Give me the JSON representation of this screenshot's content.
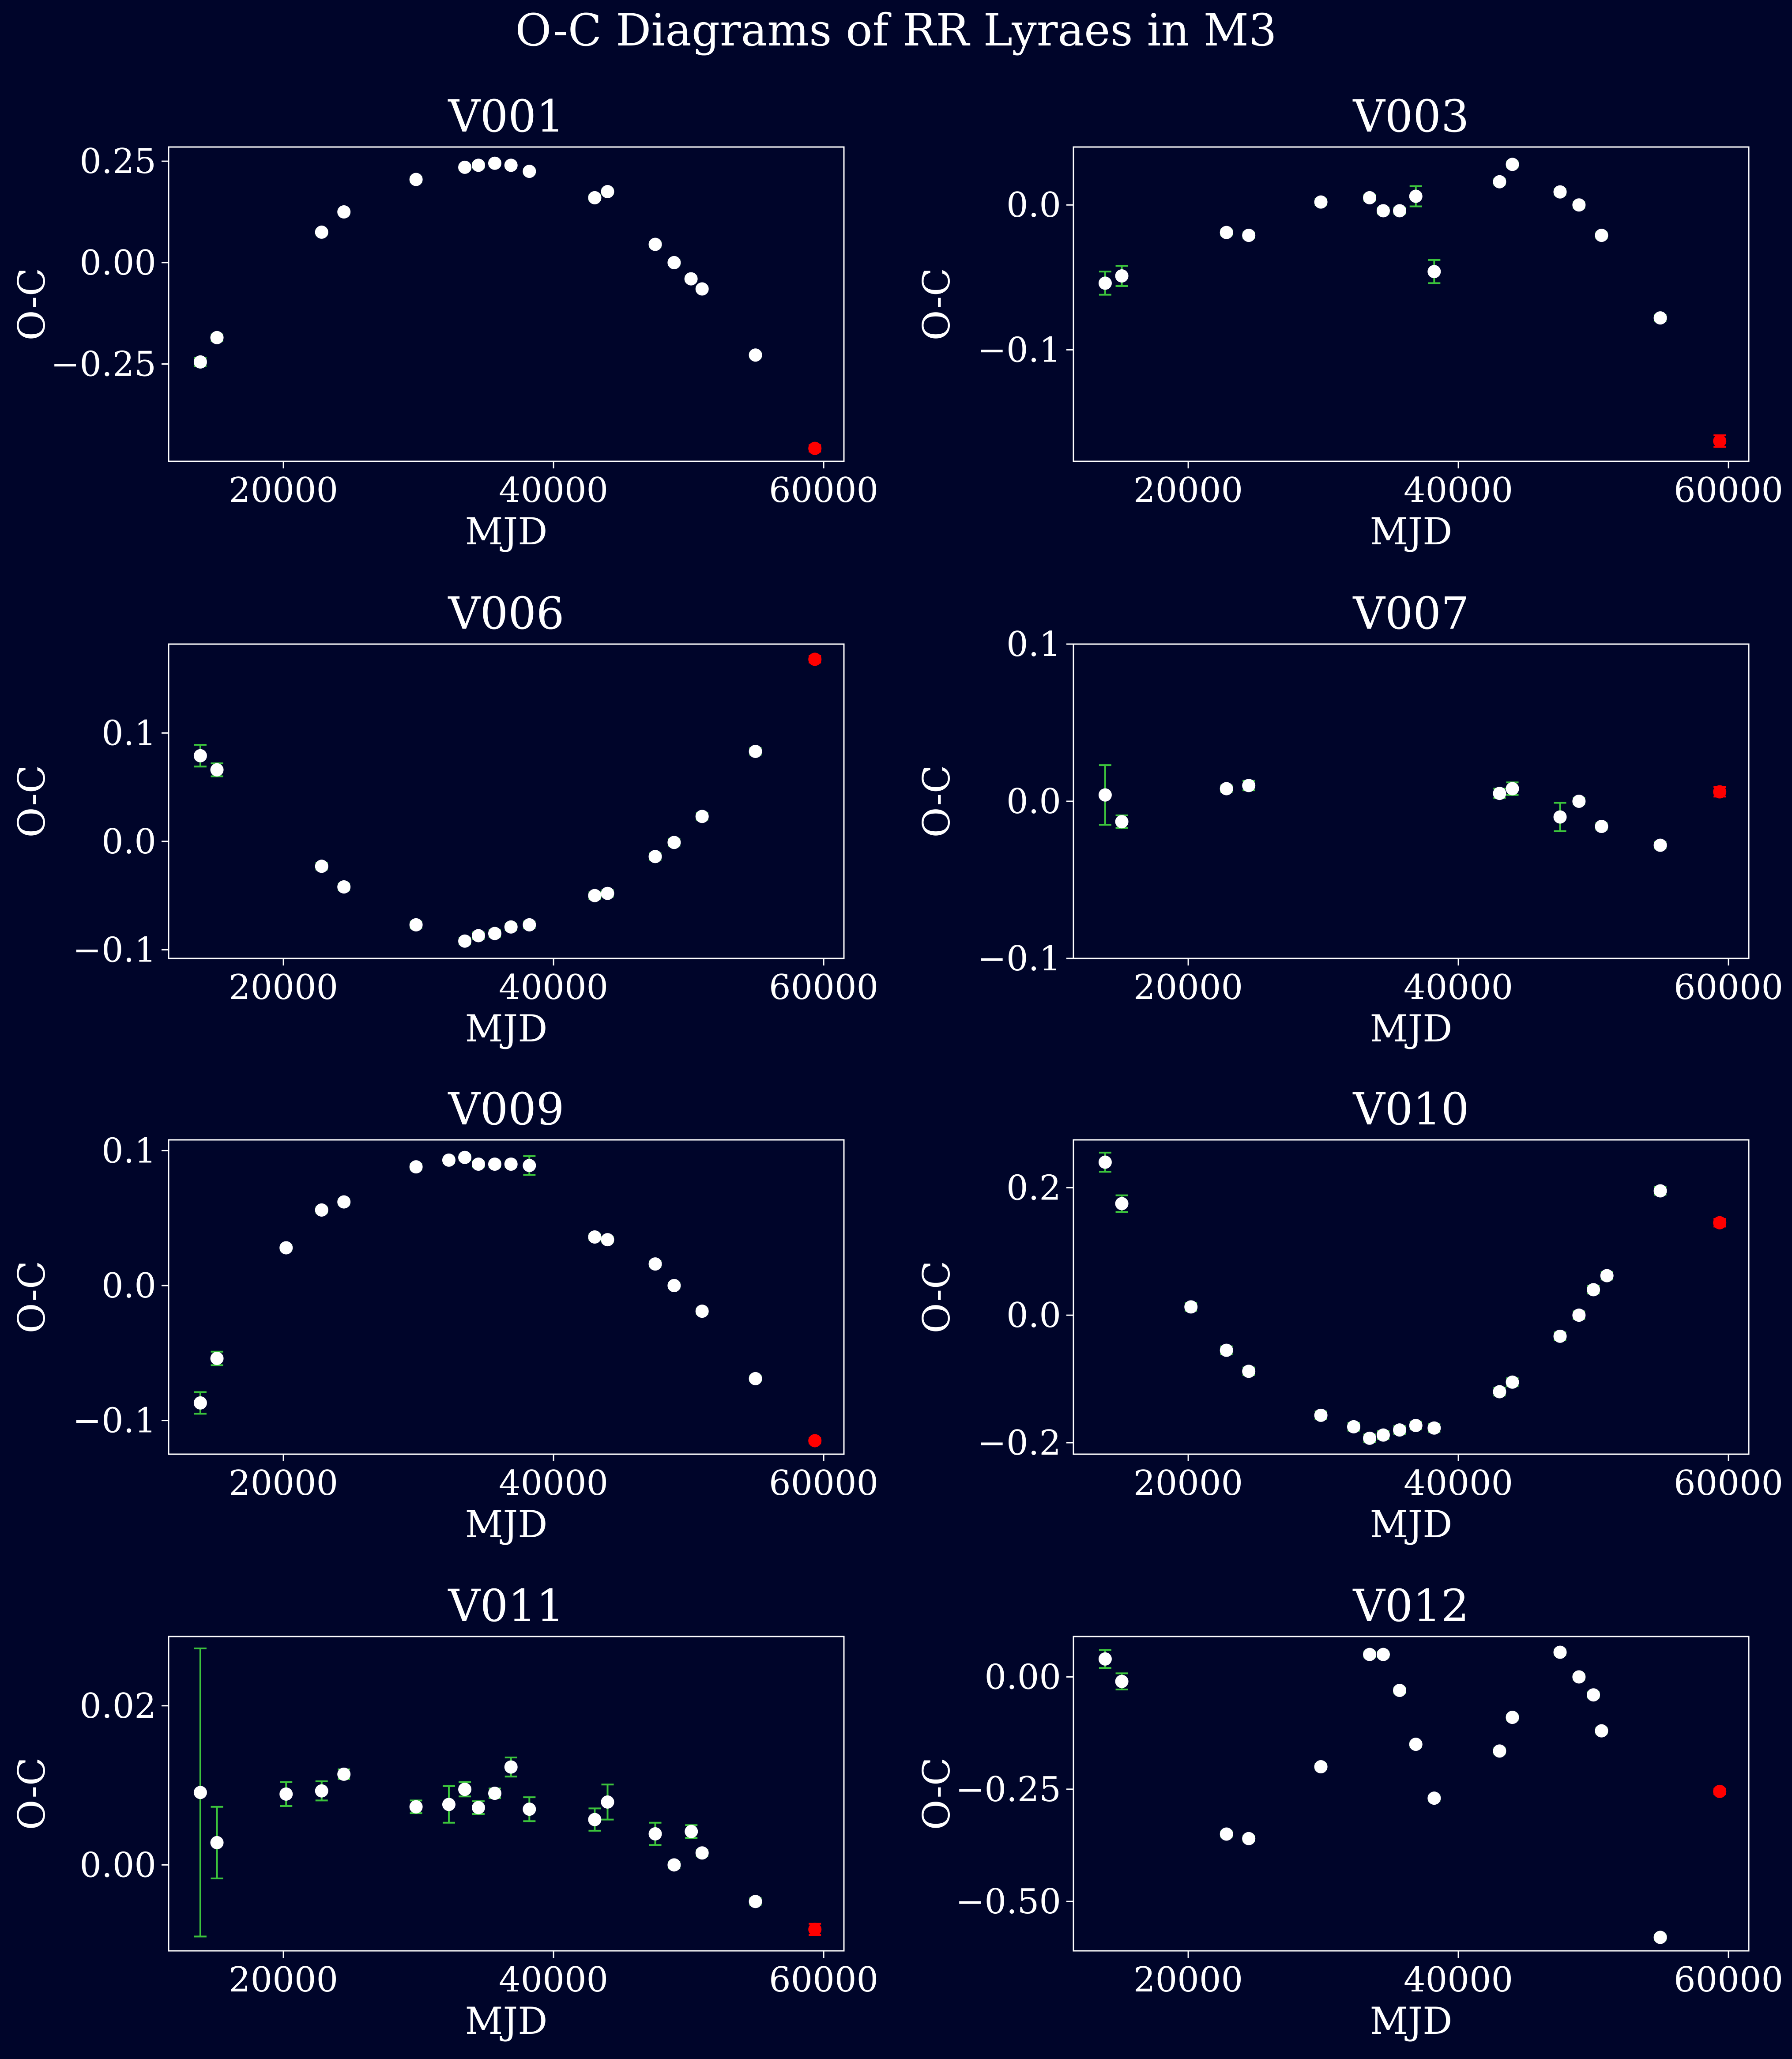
{
  "figure": {
    "title": "O-C Diagrams of RR Lyraes in M3",
    "background": "#00052a",
    "axes_color": "#ffffff",
    "point_color": "#ffffff",
    "errorbar_color": "#3cc43c",
    "highlight_color": "#ff0000"
  },
  "chart_data": [
    {
      "type": "scatter",
      "title": "V001",
      "xlabel": "MJD",
      "ylabel": "O-C",
      "xlim": [
        11500,
        61500
      ],
      "ylim": [
        -0.49,
        0.285
      ],
      "xticks": [
        20000,
        40000,
        60000
      ],
      "yticks": [
        0.25,
        0.0,
        -0.25
      ],
      "ytick_labels": [
        "0.25",
        "0.00",
        "−0.25"
      ],
      "points": [
        {
          "x": 13850,
          "y": -0.245,
          "err": 0.01
        },
        {
          "x": 15080,
          "y": -0.185,
          "err": 0.008
        },
        {
          "x": 22830,
          "y": 0.075,
          "err": 0.006
        },
        {
          "x": 24480,
          "y": 0.125,
          "err": 0.006
        },
        {
          "x": 29820,
          "y": 0.205,
          "err": 0.006
        },
        {
          "x": 33430,
          "y": 0.235,
          "err": 0.006
        },
        {
          "x": 34440,
          "y": 0.24,
          "err": 0.006
        },
        {
          "x": 35650,
          "y": 0.245,
          "err": 0.006
        },
        {
          "x": 36850,
          "y": 0.24,
          "err": 0.006
        },
        {
          "x": 38210,
          "y": 0.225,
          "err": 0.006
        },
        {
          "x": 43050,
          "y": 0.16,
          "err": 0.006
        },
        {
          "x": 44000,
          "y": 0.175,
          "err": 0.006
        },
        {
          "x": 47530,
          "y": 0.045,
          "err": 0.006
        },
        {
          "x": 48930,
          "y": 0.0,
          "err": 0.006
        },
        {
          "x": 50180,
          "y": -0.04,
          "err": 0.006
        },
        {
          "x": 51000,
          "y": -0.065,
          "err": 0.006
        },
        {
          "x": 54950,
          "y": -0.228,
          "err": 0.006
        },
        {
          "x": 59350,
          "y": -0.458,
          "err": 0.008,
          "highlight": true
        }
      ]
    },
    {
      "type": "scatter",
      "title": "V003",
      "xlabel": "MJD",
      "ylabel": "O-C",
      "xlim": [
        11500,
        61500
      ],
      "ylim": [
        -0.177,
        0.04
      ],
      "xticks": [
        20000,
        40000,
        60000
      ],
      "yticks": [
        0.0,
        -0.1
      ],
      "ytick_labels": [
        "0.0",
        "−0.1"
      ],
      "points": [
        {
          "x": 13850,
          "y": -0.054,
          "err": 0.008
        },
        {
          "x": 15080,
          "y": -0.049,
          "err": 0.007
        },
        {
          "x": 22830,
          "y": -0.019,
          "err": 0.002
        },
        {
          "x": 24480,
          "y": -0.021,
          "err": 0.002
        },
        {
          "x": 29820,
          "y": 0.002,
          "err": 0.002
        },
        {
          "x": 33430,
          "y": 0.005,
          "err": 0.002
        },
        {
          "x": 34440,
          "y": -0.004,
          "err": 0.002
        },
        {
          "x": 35650,
          "y": -0.004,
          "err": 0.002
        },
        {
          "x": 36850,
          "y": 0.006,
          "err": 0.007
        },
        {
          "x": 38210,
          "y": -0.046,
          "err": 0.008
        },
        {
          "x": 43050,
          "y": 0.016,
          "err": 0.002
        },
        {
          "x": 44000,
          "y": 0.028,
          "err": 0.002
        },
        {
          "x": 47530,
          "y": 0.009,
          "err": 0.002
        },
        {
          "x": 48930,
          "y": 0.0,
          "err": 0.002
        },
        {
          "x": 50600,
          "y": -0.021,
          "err": 0.002
        },
        {
          "x": 54950,
          "y": -0.078,
          "err": 0.002
        },
        {
          "x": 59350,
          "y": -0.163,
          "err": 0.004,
          "highlight": true
        }
      ]
    },
    {
      "type": "scatter",
      "title": "V006",
      "xlabel": "MJD",
      "ylabel": "O-C",
      "xlim": [
        11500,
        61500
      ],
      "ylim": [
        -0.108,
        0.182
      ],
      "xticks": [
        20000,
        40000,
        60000
      ],
      "yticks": [
        0.1,
        0.0,
        -0.1
      ],
      "ytick_labels": [
        "0.1",
        "0.0",
        "−0.1"
      ],
      "points": [
        {
          "x": 13850,
          "y": 0.079,
          "err": 0.01
        },
        {
          "x": 15080,
          "y": 0.066,
          "err": 0.006
        },
        {
          "x": 22830,
          "y": -0.023,
          "err": 0.003
        },
        {
          "x": 24480,
          "y": -0.042,
          "err": 0.003
        },
        {
          "x": 29820,
          "y": -0.077,
          "err": 0.003
        },
        {
          "x": 33430,
          "y": -0.092,
          "err": 0.003
        },
        {
          "x": 34440,
          "y": -0.087,
          "err": 0.003
        },
        {
          "x": 35650,
          "y": -0.085,
          "err": 0.003
        },
        {
          "x": 36850,
          "y": -0.079,
          "err": 0.003
        },
        {
          "x": 38210,
          "y": -0.077,
          "err": 0.003
        },
        {
          "x": 43050,
          "y": -0.05,
          "err": 0.003
        },
        {
          "x": 44000,
          "y": -0.048,
          "err": 0.003
        },
        {
          "x": 47530,
          "y": -0.014,
          "err": 0.003
        },
        {
          "x": 48930,
          "y": -0.001,
          "err": 0.003
        },
        {
          "x": 51000,
          "y": 0.023,
          "err": 0.003
        },
        {
          "x": 54950,
          "y": 0.083,
          "err": 0.003
        },
        {
          "x": 59350,
          "y": 0.168,
          "err": 0.003,
          "highlight": true
        }
      ]
    },
    {
      "type": "scatter",
      "title": "V007",
      "xlabel": "MJD",
      "ylabel": "O-C",
      "xlim": [
        11500,
        61500
      ],
      "ylim": [
        -0.1,
        0.1
      ],
      "xticks": [
        20000,
        40000,
        60000
      ],
      "yticks": [
        0.1,
        0.0,
        -0.1
      ],
      "ytick_labels": [
        "0.1",
        "0.0",
        "−0.1"
      ],
      "points": [
        {
          "x": 13850,
          "y": 0.004,
          "err": 0.019
        },
        {
          "x": 15080,
          "y": -0.013,
          "err": 0.004
        },
        {
          "x": 22830,
          "y": 0.008,
          "err": 0.002
        },
        {
          "x": 24480,
          "y": 0.01,
          "err": 0.003
        },
        {
          "x": 43050,
          "y": 0.005,
          "err": 0.003
        },
        {
          "x": 44000,
          "y": 0.008,
          "err": 0.004
        },
        {
          "x": 47530,
          "y": -0.01,
          "err": 0.009
        },
        {
          "x": 48930,
          "y": 0.0,
          "err": 0.002
        },
        {
          "x": 50600,
          "y": -0.016,
          "err": 0.002
        },
        {
          "x": 54950,
          "y": -0.028,
          "err": 0.002
        },
        {
          "x": 59350,
          "y": 0.006,
          "err": 0.003,
          "highlight": true
        }
      ]
    },
    {
      "type": "scatter",
      "title": "V009",
      "xlabel": "MJD",
      "ylabel": "O-C",
      "xlim": [
        11500,
        61500
      ],
      "ylim": [
        -0.125,
        0.108
      ],
      "xticks": [
        20000,
        40000,
        60000
      ],
      "yticks": [
        0.1,
        0.0,
        -0.1
      ],
      "ytick_labels": [
        "0.1",
        "0.0",
        "−0.1"
      ],
      "points": [
        {
          "x": 13850,
          "y": -0.087,
          "err": 0.008
        },
        {
          "x": 15080,
          "y": -0.054,
          "err": 0.005
        },
        {
          "x": 20200,
          "y": 0.028,
          "err": 0.002
        },
        {
          "x": 22830,
          "y": 0.056,
          "err": 0.002
        },
        {
          "x": 24480,
          "y": 0.062,
          "err": 0.002
        },
        {
          "x": 29820,
          "y": 0.088,
          "err": 0.002
        },
        {
          "x": 32250,
          "y": 0.093,
          "err": 0.002
        },
        {
          "x": 33430,
          "y": 0.095,
          "err": 0.002
        },
        {
          "x": 34440,
          "y": 0.09,
          "err": 0.002
        },
        {
          "x": 35650,
          "y": 0.09,
          "err": 0.002
        },
        {
          "x": 36850,
          "y": 0.09,
          "err": 0.002
        },
        {
          "x": 38210,
          "y": 0.089,
          "err": 0.007
        },
        {
          "x": 43050,
          "y": 0.036,
          "err": 0.002
        },
        {
          "x": 44000,
          "y": 0.034,
          "err": 0.002
        },
        {
          "x": 47530,
          "y": 0.016,
          "err": 0.002
        },
        {
          "x": 48930,
          "y": 0.0,
          "err": 0.002
        },
        {
          "x": 51000,
          "y": -0.019,
          "err": 0.002
        },
        {
          "x": 54950,
          "y": -0.069,
          "err": 0.002
        },
        {
          "x": 59350,
          "y": -0.115,
          "err": 0.002,
          "highlight": true
        }
      ]
    },
    {
      "type": "scatter",
      "title": "V010",
      "xlabel": "MJD",
      "ylabel": "O-C",
      "xlim": [
        11500,
        61500
      ],
      "ylim": [
        -0.218,
        0.275
      ],
      "xticks": [
        20000,
        40000,
        60000
      ],
      "yticks": [
        0.2,
        0.0,
        -0.2
      ],
      "ytick_labels": [
        "0.2",
        "0.0",
        "−0.2"
      ],
      "points": [
        {
          "x": 13850,
          "y": 0.24,
          "err": 0.015
        },
        {
          "x": 15080,
          "y": 0.175,
          "err": 0.013
        },
        {
          "x": 20200,
          "y": 0.013,
          "err": 0.006
        },
        {
          "x": 22830,
          "y": -0.055,
          "err": 0.006
        },
        {
          "x": 24480,
          "y": -0.088,
          "err": 0.006
        },
        {
          "x": 29820,
          "y": -0.157,
          "err": 0.006
        },
        {
          "x": 32250,
          "y": -0.175,
          "err": 0.006
        },
        {
          "x": 33430,
          "y": -0.193,
          "err": 0.006
        },
        {
          "x": 34440,
          "y": -0.188,
          "err": 0.006
        },
        {
          "x": 35650,
          "y": -0.18,
          "err": 0.006
        },
        {
          "x": 36850,
          "y": -0.173,
          "err": 0.006
        },
        {
          "x": 38210,
          "y": -0.177,
          "err": 0.006
        },
        {
          "x": 43050,
          "y": -0.12,
          "err": 0.006
        },
        {
          "x": 44000,
          "y": -0.105,
          "err": 0.006
        },
        {
          "x": 47530,
          "y": -0.033,
          "err": 0.006
        },
        {
          "x": 48930,
          "y": 0.0,
          "err": 0.006
        },
        {
          "x": 50000,
          "y": 0.04,
          "err": 0.006
        },
        {
          "x": 51000,
          "y": 0.062,
          "err": 0.006
        },
        {
          "x": 54950,
          "y": 0.195,
          "err": 0.006
        },
        {
          "x": 59350,
          "y": 0.145,
          "err": 0.006,
          "highlight": true
        }
      ]
    },
    {
      "type": "scatter",
      "title": "V011",
      "xlabel": "MJD",
      "ylabel": "O-C",
      "xlim": [
        11500,
        61500
      ],
      "ylim": [
        -0.0108,
        0.0287
      ],
      "xticks": [
        20000,
        40000,
        60000
      ],
      "yticks": [
        0.02,
        0.0
      ],
      "ytick_labels": [
        "0.02",
        "0.00"
      ],
      "points": [
        {
          "x": 13850,
          "y": 0.0091,
          "err": 0.0181
        },
        {
          "x": 15080,
          "y": 0.0028,
          "err": 0.0045
        },
        {
          "x": 20200,
          "y": 0.0089,
          "err": 0.0015
        },
        {
          "x": 22830,
          "y": 0.0093,
          "err": 0.0012
        },
        {
          "x": 24480,
          "y": 0.0114,
          "err": 0.0006
        },
        {
          "x": 29820,
          "y": 0.0073,
          "err": 0.0008
        },
        {
          "x": 32250,
          "y": 0.0076,
          "err": 0.0023
        },
        {
          "x": 33430,
          "y": 0.0095,
          "err": 0.0009
        },
        {
          "x": 34440,
          "y": 0.0072,
          "err": 0.0008
        },
        {
          "x": 35650,
          "y": 0.009,
          "err": 0.0006
        },
        {
          "x": 36850,
          "y": 0.0123,
          "err": 0.0012
        },
        {
          "x": 38210,
          "y": 0.007,
          "err": 0.0015
        },
        {
          "x": 43050,
          "y": 0.0057,
          "err": 0.0014
        },
        {
          "x": 44000,
          "y": 0.0079,
          "err": 0.0022
        },
        {
          "x": 47530,
          "y": 0.0039,
          "err": 0.0014
        },
        {
          "x": 48930,
          "y": 0.0,
          "err": 0.0004
        },
        {
          "x": 50200,
          "y": 0.0042,
          "err": 0.0008
        },
        {
          "x": 51000,
          "y": 0.0015,
          "err": 0.0004
        },
        {
          "x": 54950,
          "y": -0.0046,
          "err": 0.0004
        },
        {
          "x": 59350,
          "y": -0.0081,
          "err": 0.0007,
          "highlight": true
        }
      ]
    },
    {
      "type": "scatter",
      "title": "V012",
      "xlabel": "MJD",
      "ylabel": "O-C",
      "xlim": [
        11500,
        61500
      ],
      "ylim": [
        -0.61,
        0.09
      ],
      "xticks": [
        20000,
        40000,
        60000
      ],
      "yticks": [
        0.0,
        -0.25,
        -0.5
      ],
      "ytick_labels": [
        "0.00",
        "−0.25",
        "−0.50"
      ],
      "points": [
        {
          "x": 13850,
          "y": 0.04,
          "err": 0.02
        },
        {
          "x": 15080,
          "y": -0.01,
          "err": 0.018
        },
        {
          "x": 22830,
          "y": -0.35,
          "err": 0.006
        },
        {
          "x": 24480,
          "y": -0.36,
          "err": 0.006
        },
        {
          "x": 29820,
          "y": -0.2,
          "err": 0.006
        },
        {
          "x": 33430,
          "y": 0.05,
          "err": 0.006
        },
        {
          "x": 34440,
          "y": 0.05,
          "err": 0.006
        },
        {
          "x": 35650,
          "y": -0.03,
          "err": 0.006
        },
        {
          "x": 36850,
          "y": -0.15,
          "err": 0.006
        },
        {
          "x": 38210,
          "y": -0.27,
          "err": 0.006
        },
        {
          "x": 43050,
          "y": -0.165,
          "err": 0.006
        },
        {
          "x": 44000,
          "y": -0.09,
          "err": 0.006
        },
        {
          "x": 47530,
          "y": 0.055,
          "err": 0.006
        },
        {
          "x": 48930,
          "y": 0.0,
          "err": 0.006
        },
        {
          "x": 50000,
          "y": -0.04,
          "err": 0.006
        },
        {
          "x": 50600,
          "y": -0.12,
          "err": 0.006
        },
        {
          "x": 54950,
          "y": -0.58,
          "err": 0.006
        },
        {
          "x": 59350,
          "y": -0.255,
          "err": 0.006,
          "highlight": true
        }
      ]
    }
  ]
}
